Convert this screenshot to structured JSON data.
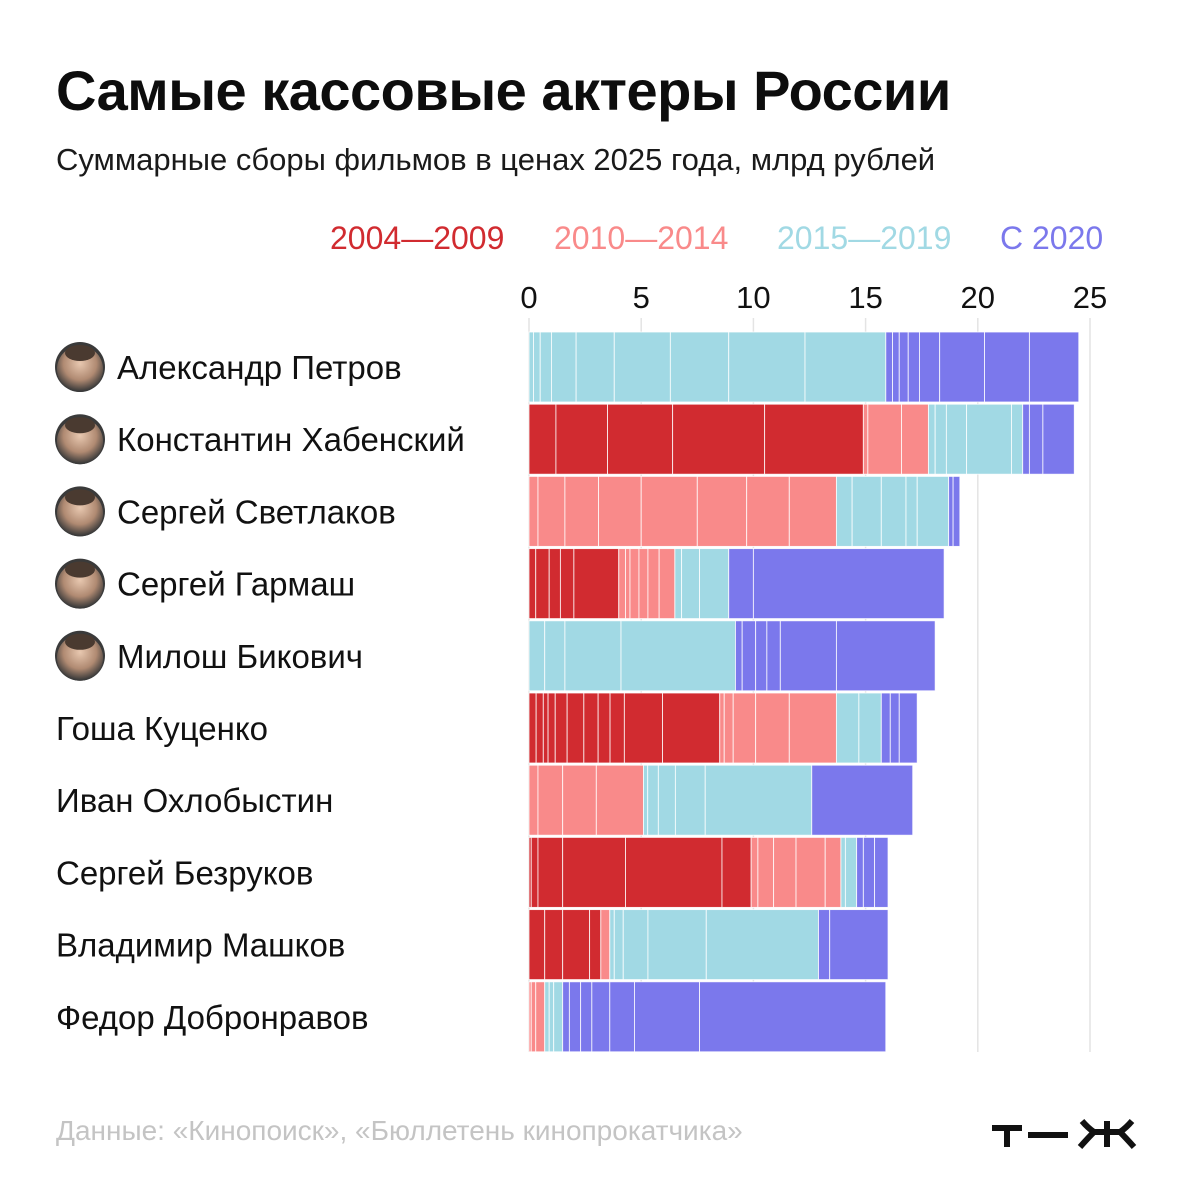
{
  "header": {
    "title": "Самые кассовые актеры России",
    "subtitle": "Суммарные сборы фильмов в ценах 2025 года, млрд рублей"
  },
  "legend": [
    {
      "label": "2004—2009",
      "color": "#d12b30"
    },
    {
      "label": "2010—2014",
      "color": "#f98a8a"
    },
    {
      "label": "2015—2019",
      "color": "#a1d9e4"
    },
    {
      "label": "С 2020",
      "color": "#7b78ec"
    }
  ],
  "chart_data": {
    "type": "bar",
    "orientation": "horizontal",
    "stacked": true,
    "xlim": [
      0,
      25
    ],
    "xticks": [
      0,
      5,
      10,
      15,
      20,
      25
    ],
    "grid": true,
    "legend_position": "top",
    "categories": [
      "Александр Петров",
      "Константин Хабенский",
      "Сергей Светлаков",
      "Сергей Гармаш",
      "Милош Бикович",
      "Гоша Куценко",
      "Иван Охлобыстин",
      "Сергей Безруков",
      "Владимир Машков",
      "Федор Добронравов"
    ],
    "has_photo": [
      true,
      true,
      true,
      true,
      true,
      false,
      false,
      false,
      false,
      false
    ],
    "series": [
      {
        "name": "2004—2009",
        "color": "#d12b30",
        "values": [
          0,
          14.9,
          0,
          4.0,
          0,
          8.5,
          0,
          9.9,
          3.2,
          0
        ]
      },
      {
        "name": "2010—2014",
        "color": "#f98a8a",
        "values": [
          0,
          2.9,
          13.7,
          2.5,
          0,
          5.2,
          5.1,
          4.0,
          0.4,
          0.7
        ]
      },
      {
        "name": "2015—2019",
        "color": "#a1d9e4",
        "values": [
          15.9,
          4.2,
          5.0,
          2.4,
          9.2,
          2.0,
          7.5,
          0.7,
          9.3,
          0.8
        ]
      },
      {
        "name": "С 2020",
        "color": "#7b78ec",
        "values": [
          8.6,
          2.3,
          0.5,
          9.6,
          8.9,
          1.6,
          4.5,
          1.4,
          3.1,
          14.4
        ]
      }
    ],
    "films": [
      [
        [],
        [],
        [
          0.2,
          0.3,
          0.5,
          1.1,
          1.7,
          2.5,
          2.6,
          3.4,
          3.6
        ],
        [
          0.3,
          0.3,
          0.4,
          0.5,
          0.9,
          2.0,
          2.0,
          2.2
        ]
      ],
      [
        [
          1.2,
          2.3,
          2.9,
          4.1,
          4.4
        ],
        [
          0.2,
          1.5,
          1.2
        ],
        [
          0.3,
          0.5,
          0.9,
          2.0,
          0.5
        ],
        [
          0.3,
          0.6,
          1.4
        ]
      ],
      [
        [],
        [
          0.4,
          1.2,
          1.5,
          1.9,
          2.5,
          2.2,
          1.9,
          2.1
        ],
        [
          0.7,
          1.3,
          1.1,
          0.5,
          1.4
        ],
        [
          0.2,
          0.3
        ]
      ],
      [
        [
          0.3,
          0.6,
          0.5,
          0.6,
          2.0
        ],
        [
          0.3,
          0.2,
          0.4,
          0.4,
          0.5,
          0.7
        ],
        [
          0.3,
          0.8,
          1.3
        ],
        [
          1.1,
          8.5
        ]
      ],
      [
        [],
        [],
        [
          0.7,
          0.9,
          2.5,
          5.1
        ],
        [
          0.3,
          0.6,
          0.5,
          0.6,
          2.5,
          4.4
        ]
      ],
      [
        [
          0.3,
          0.3,
          0.2,
          0.3,
          0.5,
          0.7,
          0.6,
          0.5,
          0.6,
          1.6,
          2.4
        ],
        [
          0.2,
          0.4,
          1.0,
          1.5,
          2.1
        ],
        [
          1.0,
          1.0
        ],
        [
          0.4,
          0.4,
          0.8
        ]
      ],
      [
        [],
        [
          0.4,
          1.1,
          1.5,
          2.1
        ],
        [
          0.2,
          0.5,
          0.8,
          1.4,
          5.0
        ],
        [
          4.5
        ]
      ],
      [
        [
          0.1,
          0.3,
          1.1,
          2.8,
          4.3,
          1.3
        ],
        [
          0.3,
          0.7,
          1.0,
          1.3,
          0.7
        ],
        [
          0.2,
          0.5
        ],
        [
          0.3,
          0.5,
          0.6
        ]
      ],
      [
        [
          0.7,
          0.8,
          1.2,
          0.5
        ],
        [
          0.4
        ],
        [
          0.2,
          0.4,
          1.1,
          2.6,
          5.0
        ],
        [
          0.5,
          2.6
        ]
      ],
      [
        [],
        [
          0.1,
          0.2,
          0.4
        ],
        [
          0.2,
          0.2,
          0.4
        ],
        [
          0.3,
          0.5,
          0.5,
          0.8,
          1.1,
          2.9,
          8.3
        ]
      ]
    ]
  },
  "footer": {
    "source": "Данные: «Кинопоиск», «Бюллетень кинопрокатчика»",
    "logo_icon": "tzh-logo"
  }
}
